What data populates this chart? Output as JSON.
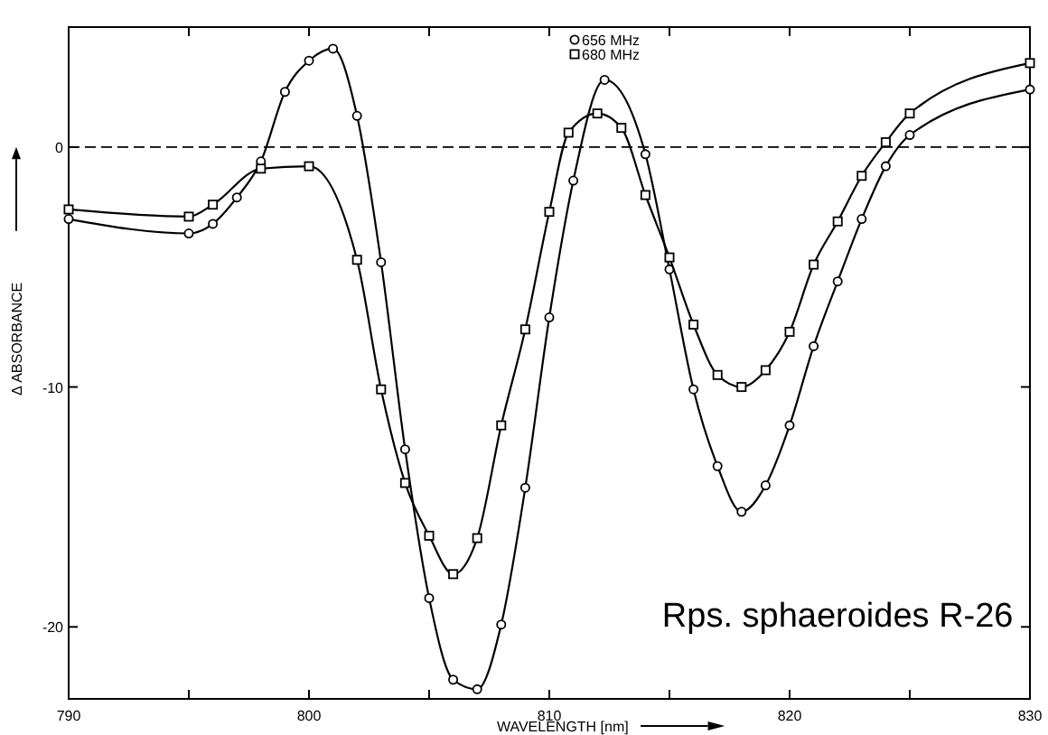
{
  "chart_data": {
    "type": "line",
    "xlabel": "WAVELENGTH [nm]",
    "ylabel": "Δ ABSORBANCE",
    "xlim": [
      790,
      830
    ],
    "ylim": [
      -23,
      5
    ],
    "xticks": [
      790,
      {
        "value": 795,
        "label": null
      },
      800,
      {
        "value": 805,
        "label": null
      },
      810,
      {
        "value": 815,
        "label": null
      },
      820,
      {
        "value": 825,
        "label": null
      },
      830
    ],
    "yticks": [
      {
        "value": 0,
        "label": "0"
      },
      {
        "value": -10,
        "label": "-10"
      },
      {
        "value": -20,
        "label": "-20"
      }
    ],
    "ref_lines": [
      {
        "axis": "y",
        "value": 0,
        "line_style": "dashed",
        "color": "#000000"
      }
    ],
    "legend": "top",
    "grid": false,
    "annotations": [
      "Rps. sphaeroides R-26"
    ],
    "series": [
      {
        "name": "656 MHz",
        "color": "#000000",
        "marker": "circle",
        "x": [
          790,
          795,
          796,
          797,
          798,
          799,
          800,
          801,
          802,
          803,
          804,
          805,
          806,
          807,
          808,
          809,
          810,
          811,
          812.3,
          814,
          815,
          816,
          817,
          818,
          819,
          820,
          821,
          822,
          823,
          824,
          825,
          830
        ],
        "values": [
          -3.0,
          -3.6,
          -3.2,
          -2.1,
          -0.6,
          2.3,
          3.6,
          4.1,
          1.3,
          -4.8,
          -12.6,
          -18.8,
          -22.2,
          -22.6,
          -19.9,
          -14.2,
          -7.1,
          -1.4,
          2.8,
          -0.3,
          -5.1,
          -10.1,
          -13.3,
          -15.2,
          -14.1,
          -11.6,
          -8.3,
          -5.6,
          -3.0,
          -0.8,
          0.5,
          2.4
        ]
      },
      {
        "name": "680 MHz",
        "color": "#000000",
        "marker": "square",
        "x": [
          790,
          795,
          796,
          798,
          800,
          802,
          803,
          804,
          805,
          806,
          807,
          808,
          809,
          810,
          810.8,
          812,
          813,
          814,
          815,
          816,
          817,
          818,
          819,
          820,
          821,
          822,
          823,
          824,
          825,
          830
        ],
        "values": [
          -2.6,
          -2.9,
          -2.4,
          -0.9,
          -0.8,
          -4.7,
          -10.1,
          -14.0,
          -16.2,
          -17.8,
          -16.3,
          -11.6,
          -7.6,
          -2.7,
          0.6,
          1.4,
          0.8,
          -2.0,
          -4.6,
          -7.4,
          -9.5,
          -10.0,
          -9.3,
          -7.7,
          -4.9,
          -3.1,
          -1.2,
          0.2,
          1.4,
          3.5
        ]
      }
    ]
  }
}
